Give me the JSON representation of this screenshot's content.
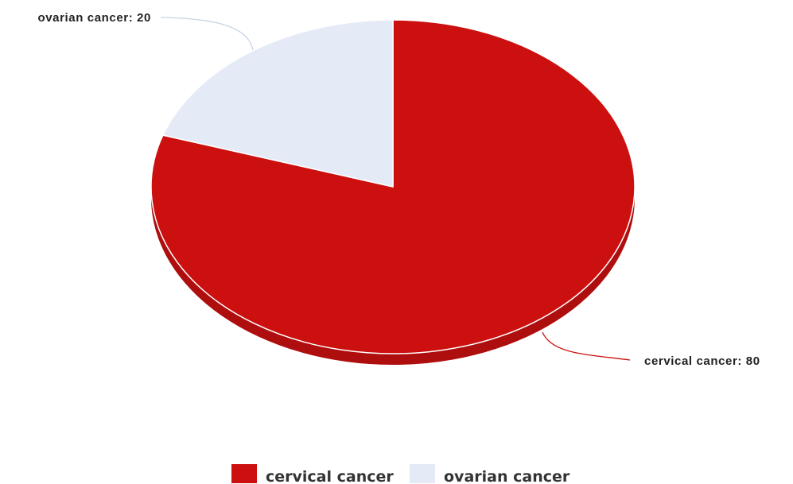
{
  "chart_data": {
    "type": "pie",
    "title": "",
    "slices": [
      {
        "label": "cervical cancer",
        "value": 80,
        "color": "#cc1010",
        "data_label": "cervical cancer: 80"
      },
      {
        "label": "ovarian cancer",
        "value": 20,
        "color": "#e4ebf6",
        "data_label": "ovarian cancer: 20"
      }
    ],
    "legend": {
      "position": "bottom",
      "items": [
        "cervical cancer",
        "ovarian cancer"
      ]
    },
    "style": "3d-tilted"
  }
}
